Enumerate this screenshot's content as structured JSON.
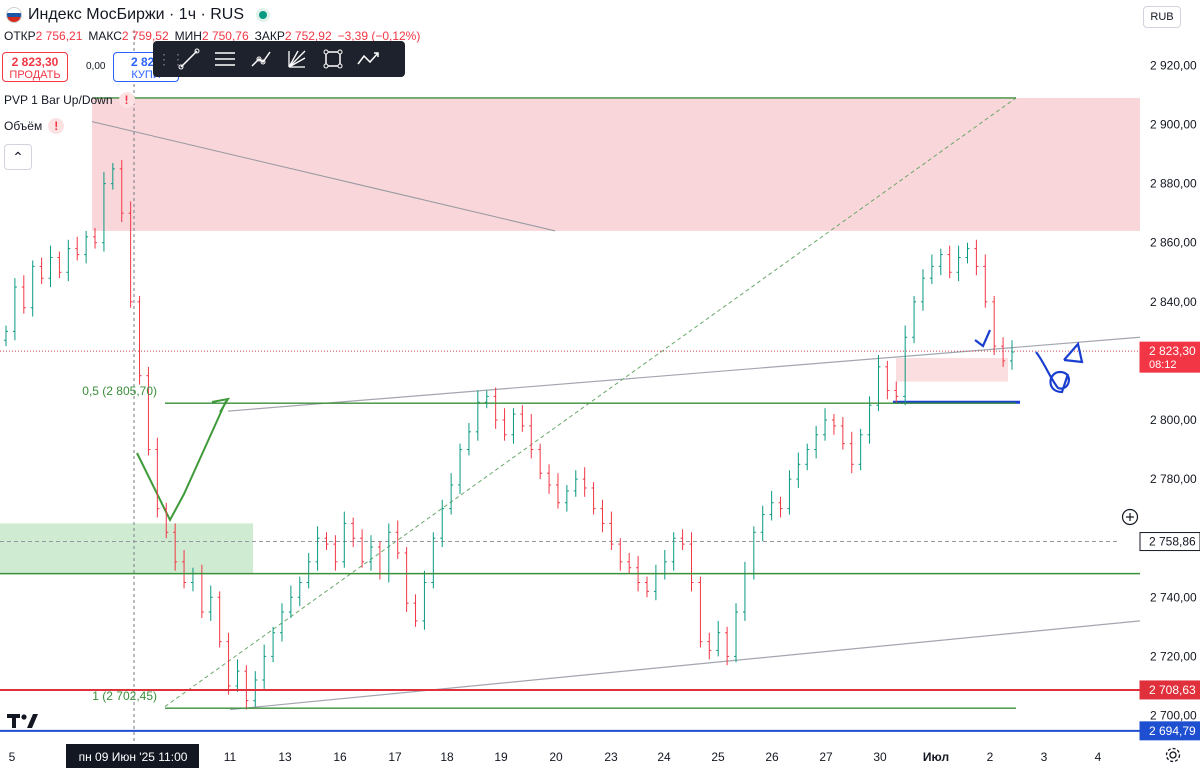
{
  "header": {
    "title": "Индекс МосБиржи · 1ч · RUS",
    "ohlc": [
      {
        "key": "ОТКР",
        "value": "2 756,21"
      },
      {
        "key": "МАКС",
        "value": "2 759,52"
      },
      {
        "key": "МИН",
        "value": "2 750,76"
      },
      {
        "key": "ЗАКР",
        "value": "2 752,92"
      },
      {
        "key": "",
        "value": "−3,39 (−0,12%)"
      }
    ],
    "sell_price": "2 823,30",
    "sell_label": "ПРОДАТЬ",
    "buy_price": "2 823",
    "buy_label": "КУПИ",
    "spread": "0,00",
    "indicators": [
      "PVP 1 Bar Up/Down",
      "Объём"
    ],
    "currency": "RUB"
  },
  "toolbar": {
    "icons": [
      "trend-line-icon",
      "parallel-channel-icon",
      "polyline-icon",
      "fib-fan-icon",
      "rectangle-icon",
      "path-icon"
    ]
  },
  "colors": {
    "up": "#089981",
    "down": "#f23645",
    "supply_zone": "#f7c8cc",
    "demand_zone": "#bfe4c3",
    "green_level": "#3a8f3a",
    "red_level": "#e0303c",
    "blue_level": "#1f4fd1",
    "hand_drawn": "#1a3fd0"
  },
  "chart_data": {
    "type": "candlestick",
    "title": "Индекс МосБиржи · 1ч · RUS",
    "ylim": [
      2690,
      2932
    ],
    "y_ticks": [
      2700,
      2720,
      2740,
      2760,
      2780,
      2800,
      2820,
      2840,
      2860,
      2880,
      2900,
      2920
    ],
    "y_tick_labels": [
      "2 700,00",
      "2 720,00",
      "2 740,00",
      "2 760,00",
      "2 780,00",
      "2 800,00",
      "2 820,00",
      "2 840,00",
      "2 860,00",
      "2 880,00",
      "2 900,00",
      "2 920,00"
    ],
    "x_tick_labels": [
      "5",
      "пн 09 Июн '25  11:00",
      "11",
      "13",
      "16",
      "17",
      "18",
      "19",
      "20",
      "23",
      "24",
      "25",
      "26",
      "27",
      "30",
      "Июл",
      "2",
      "3",
      "4"
    ],
    "price_labels": [
      {
        "value": 2823.3,
        "text": "2 823,30",
        "sub": "08:12",
        "color": "#f23645"
      },
      {
        "value": 2758.86,
        "text": "2 758,86",
        "sub": "",
        "color": "#131722"
      },
      {
        "value": 2708.63,
        "text": "2 708,63",
        "sub": "",
        "color": "#e0303c"
      },
      {
        "value": 2694.79,
        "text": "2 694,79",
        "sub": "",
        "color": "#1f4fd1"
      }
    ],
    "fib_labels": [
      {
        "text": "0,5 (2 805,70)",
        "value": 2805.7
      },
      {
        "text": "1 (2 702,45)",
        "value": 2702.45
      }
    ],
    "zones": [
      {
        "name": "supply",
        "y_top": 2909,
        "y_bottom": 2864
      },
      {
        "name": "demand",
        "y_top": 2765,
        "y_bottom": 2748
      },
      {
        "name": "small-supply",
        "y_top": 2821,
        "y_bottom": 2813
      }
    ],
    "horizontal_levels": [
      {
        "value": 2909,
        "color": "#3a8f3a"
      },
      {
        "value": 2805.7,
        "color": "#3a8f3a"
      },
      {
        "value": 2748,
        "color": "#3a8f3a"
      },
      {
        "value": 2702.45,
        "color": "#3a8f3a"
      },
      {
        "value": 2708.63,
        "color": "#e0303c"
      },
      {
        "value": 2694.79,
        "color": "#1f4fd1"
      }
    ],
    "series": [
      {
        "name": "",
        "points": [
          2830,
          2845,
          2838,
          2852,
          2848,
          2855,
          2850,
          2858,
          2856,
          2862,
          2860,
          2880,
          2885,
          2870,
          2840,
          2815,
          2790,
          2770,
          2762,
          2752,
          2745,
          2748,
          2735,
          2740,
          2725,
          2710,
          2715,
          2705,
          2712,
          2720,
          2728,
          2735,
          2740,
          2745,
          2752,
          2760,
          2758,
          2752,
          2765,
          2760,
          2752,
          2757,
          2748,
          2762,
          2755,
          2738,
          2732,
          2745,
          2760,
          2770,
          2778,
          2790,
          2796,
          2806,
          2808,
          2800,
          2795,
          2802,
          2798,
          2790,
          2782,
          2778,
          2772,
          2776,
          2780,
          2777,
          2770,
          2765,
          2758,
          2752,
          2750,
          2745,
          2742,
          2748,
          2752,
          2760,
          2758,
          2745,
          2725,
          2722,
          2728,
          2720,
          2735,
          2748,
          2762,
          2768,
          2772,
          2770,
          2780,
          2785,
          2790,
          2795,
          2800,
          2798,
          2792,
          2785,
          2795,
          2805,
          2818,
          2810,
          2808,
          2828,
          2840,
          2848,
          2852,
          2856,
          2850,
          2855,
          2858,
          2852,
          2840,
          2825,
          2820,
          2823
        ]
      }
    ]
  }
}
